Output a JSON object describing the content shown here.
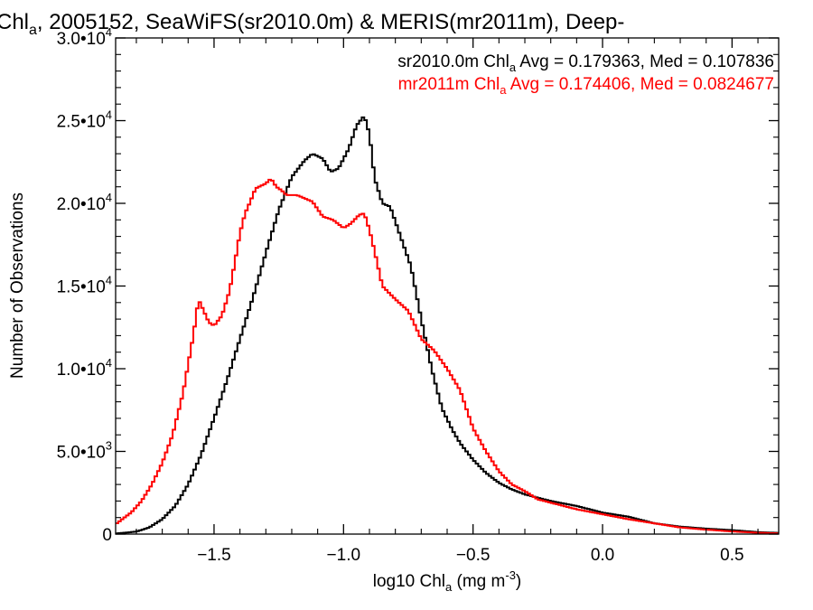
{
  "chart_data": {
    "type": "line",
    "title": {
      "part1": "Chl",
      "sub": "a",
      "part2": ", 2005152, SeaWiFS(sr2010.0m) & MERIS(mr2011m), Deep-"
    },
    "xlabel": {
      "pre": "log10 Chl",
      "sub": "a",
      "mid": " (mg m",
      "sup": "-3",
      "post": ")"
    },
    "ylabel": "Number of Observations",
    "xlim": [
      -1.88,
      0.68
    ],
    "ylim": [
      0,
      30000
    ],
    "grid": false,
    "step": true,
    "x_ticks": [
      {
        "value": -1.5,
        "label": "−1.5"
      },
      {
        "value": -1.0,
        "label": "−1.0"
      },
      {
        "value": -0.5,
        "label": "−0.5"
      },
      {
        "value": 0.0,
        "label": "0.0"
      },
      {
        "value": 0.5,
        "label": "0.5"
      }
    ],
    "y_ticks": [
      {
        "value": 0,
        "mant": "0",
        "exp": ""
      },
      {
        "value": 5000,
        "mant": "5.0•10",
        "exp": "3"
      },
      {
        "value": 10000,
        "mant": "1.0•10",
        "exp": "4"
      },
      {
        "value": 15000,
        "mant": "1.5•10",
        "exp": "4"
      },
      {
        "value": 20000,
        "mant": "2.0•10",
        "exp": "4"
      },
      {
        "value": 25000,
        "mant": "2.5•10",
        "exp": "4"
      },
      {
        "value": 30000,
        "mant": "3.0•10",
        "exp": "4"
      }
    ],
    "legend": [
      {
        "pre": "sr2010.0m Chl",
        "sub": "a",
        "post": " Avg = 0.179363, Med = 0.107836",
        "color": "#000000"
      },
      {
        "pre": "mr2011m Chl",
        "sub": "a",
        "post": " Avg = 0.174406, Med = 0.0824677",
        "color": "#ff0000"
      }
    ],
    "series": [
      {
        "color": "#000000",
        "x": [
          -1.88,
          -1.8,
          -1.75,
          -1.7,
          -1.65,
          -1.6,
          -1.55,
          -1.5,
          -1.45,
          -1.4,
          -1.35,
          -1.3,
          -1.25,
          -1.2,
          -1.15,
          -1.12,
          -1.08,
          -1.05,
          -1.02,
          -0.98,
          -0.95,
          -0.92,
          -0.9,
          -0.88,
          -0.85,
          -0.82,
          -0.78,
          -0.74,
          -0.7,
          -0.66,
          -0.62,
          -0.58,
          -0.55,
          -0.5,
          -0.45,
          -0.4,
          -0.35,
          -0.3,
          -0.25,
          -0.2,
          -0.1,
          0.0,
          0.1,
          0.2,
          0.3,
          0.4,
          0.5,
          0.6,
          0.68
        ],
        "y": [
          30,
          150,
          400,
          900,
          1700,
          3000,
          4800,
          7000,
          9300,
          11800,
          14300,
          17000,
          19600,
          21600,
          22600,
          23000,
          22700,
          21900,
          22100,
          23300,
          24700,
          25300,
          24200,
          21500,
          20000,
          19800,
          18000,
          16200,
          13000,
          10000,
          7600,
          6300,
          5500,
          4500,
          3700,
          3100,
          2700,
          2400,
          2200,
          2000,
          1700,
          1300,
          1050,
          650,
          450,
          330,
          240,
          120,
          70
        ]
      },
      {
        "color": "#ff0000",
        "x": [
          -1.88,
          -1.82,
          -1.78,
          -1.74,
          -1.7,
          -1.66,
          -1.62,
          -1.58,
          -1.56,
          -1.54,
          -1.52,
          -1.5,
          -1.47,
          -1.44,
          -1.42,
          -1.4,
          -1.38,
          -1.36,
          -1.34,
          -1.3,
          -1.28,
          -1.26,
          -1.24,
          -1.22,
          -1.18,
          -1.12,
          -1.08,
          -1.04,
          -1.0,
          -0.97,
          -0.94,
          -0.92,
          -0.9,
          -0.88,
          -0.85,
          -0.8,
          -0.75,
          -0.7,
          -0.65,
          -0.6,
          -0.55,
          -0.5,
          -0.45,
          -0.4,
          -0.35,
          -0.3,
          -0.25,
          -0.2,
          -0.1,
          0.0,
          0.1,
          0.2,
          0.3,
          0.4,
          0.5,
          0.6,
          0.68
        ],
        "y": [
          600,
          1300,
          2000,
          3000,
          4300,
          6000,
          8500,
          12000,
          14200,
          13500,
          12800,
          12600,
          13200,
          14700,
          16400,
          18200,
          19400,
          20100,
          20900,
          21200,
          21500,
          21000,
          20800,
          20500,
          20500,
          20100,
          19200,
          19000,
          18500,
          18800,
          19300,
          19400,
          18400,
          17100,
          15000,
          14200,
          13500,
          11800,
          11100,
          10000,
          8700,
          6400,
          5000,
          3800,
          3000,
          2600,
          2100,
          1900,
          1500,
          1200,
          900,
          650,
          400,
          270,
          160,
          80,
          40
        ]
      }
    ]
  }
}
